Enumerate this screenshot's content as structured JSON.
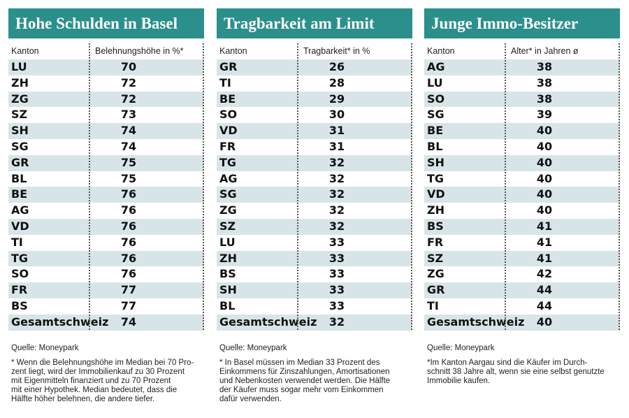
{
  "panels": [
    {
      "title": "Hohe Schulden in Basel",
      "headers": [
        "Kanton",
        "Belehnungshöhe in %*"
      ],
      "rows": [
        [
          "LU",
          70
        ],
        [
          "ZH",
          72
        ],
        [
          "ZG",
          72
        ],
        [
          "SZ",
          73
        ],
        [
          "SH",
          74
        ],
        [
          "SG",
          74
        ],
        [
          "GR",
          75
        ],
        [
          "BL",
          75
        ],
        [
          "BE",
          76
        ],
        [
          "AG",
          76
        ],
        [
          "VD",
          76
        ],
        [
          "TI",
          76
        ],
        [
          "TG",
          76
        ],
        [
          "SO",
          76
        ],
        [
          "FR",
          77
        ],
        [
          "BS",
          77
        ],
        [
          "Gesamtschweiz",
          74
        ]
      ],
      "source": "Quelle: Moneypark",
      "note": [
        "* Wenn die Belehnungshöhe im Median bei 70 Pro-",
        "zent liegt, wird der Immobilienkauf zu 30 Prozent",
        "mit Eigenmitteln finanziert und zu 70 Prozent",
        "mit einer Hypothek. Median bedeutet, dass die",
        "Hälfte höher belehnen, die andere tiefer."
      ]
    },
    {
      "title": "Tragbarkeit am Limit",
      "headers": [
        "Kanton",
        "Tragbarkeit* in %"
      ],
      "rows": [
        [
          "GR",
          26
        ],
        [
          "TI",
          28
        ],
        [
          "BE",
          29
        ],
        [
          "SO",
          30
        ],
        [
          "VD",
          31
        ],
        [
          "FR",
          31
        ],
        [
          "TG",
          32
        ],
        [
          "AG",
          32
        ],
        [
          "SG",
          32
        ],
        [
          "ZG",
          32
        ],
        [
          "SZ",
          32
        ],
        [
          "LU",
          33
        ],
        [
          "ZH",
          33
        ],
        [
          "BS",
          33
        ],
        [
          "SH",
          33
        ],
        [
          "BL",
          33
        ],
        [
          "Gesamtschweiz",
          32
        ]
      ],
      "source": "Quelle: Moneypark",
      "note": [
        "* In Basel müssen im Median 33 Prozent des",
        "Einkommens für Zinszahlungen, Amortisationen",
        "und Nebenkosten verwendet werden. Die Hälfte",
        "der Käufer muss sogar mehr vom Einkommen",
        "dafür verwenden."
      ]
    },
    {
      "title": "Junge Immo-Besitzer",
      "headers": [
        "Kanton",
        "Alter* in Jahren ø"
      ],
      "rows": [
        [
          "AG",
          38
        ],
        [
          "LU",
          38
        ],
        [
          "SO",
          38
        ],
        [
          "SG",
          39
        ],
        [
          "BE",
          40
        ],
        [
          "BL",
          40
        ],
        [
          "SH",
          40
        ],
        [
          "TG",
          40
        ],
        [
          "VD",
          40
        ],
        [
          "ZH",
          40
        ],
        [
          "BS",
          41
        ],
        [
          "FR",
          41
        ],
        [
          "SZ",
          41
        ],
        [
          "ZG",
          42
        ],
        [
          "GR",
          44
        ],
        [
          "TI",
          44
        ],
        [
          "Gesamtschweiz",
          40
        ]
      ],
      "source": "Quelle: Moneypark",
      "note": [
        "*Im Kanton Aargau sind die Käufer im Durch-",
        "schnitt 38 Jahre alt, wenn sie eine selbst genutzte",
        "Immobilie kaufen."
      ]
    }
  ]
}
